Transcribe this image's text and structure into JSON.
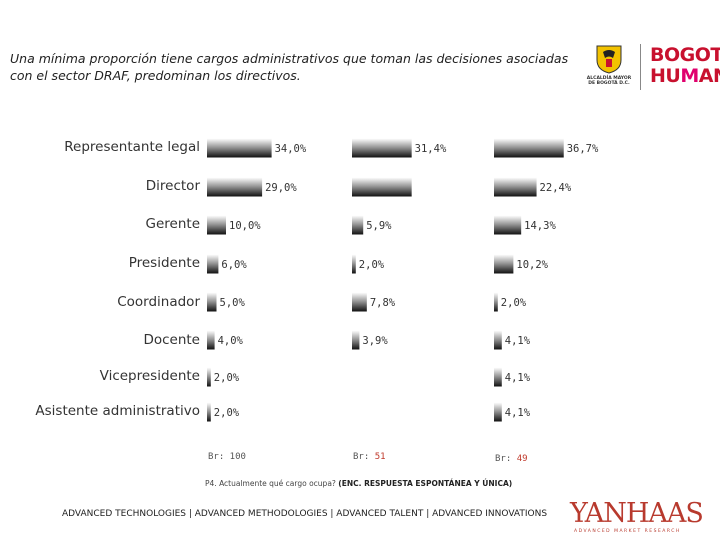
{
  "header": {
    "line1": "Una mínima proporción tiene cargos administrativos que toman las decisiones asociadas",
    "line2": "con el sector DRAF, predominan los directivos."
  },
  "logos": {
    "alcaldia_caption": "ALCALDÍA MAYOR DE BOGOTÁ D.C.",
    "bogota_line1": "BOGOTÁ",
    "bogota_line2_a": "HU",
    "bogota_line2_b": "M",
    "bogota_line2_c": "ANA",
    "yanhaas_brand": "YANHAAS",
    "yanhaas_sub": "ADVANCED MARKET RESEARCH"
  },
  "chart_data": {
    "type": "bar",
    "orientation": "horizontal",
    "categories": [
      "Representante legal",
      "Director",
      "Gerente",
      "Presidente",
      "Coordinador",
      "Docente",
      "Vicepresidente",
      "Asistente administrativo"
    ],
    "series": [
      {
        "values": [
          34.0,
          29.0,
          10.0,
          6.0,
          5.0,
          4.0,
          2.0,
          2.0
        ],
        "labels": [
          "34,0%",
          "29,0%",
          "10,0%",
          "6,0%",
          "5,0%",
          "4,0%",
          "2,0%",
          "2,0%"
        ],
        "base_label": "Br: 100",
        "base_prefix": "Br: 100",
        "base_n": ""
      },
      {
        "values": [
          31.4,
          31.4,
          5.9,
          2.0,
          7.8,
          3.9,
          null,
          null
        ],
        "labels": [
          "31,4%",
          "",
          "5,9%",
          "2,0%",
          "7,8%",
          "3,9%",
          "",
          ""
        ],
        "base_prefix": "Br: ",
        "base_n": "51"
      },
      {
        "values": [
          36.7,
          22.4,
          14.3,
          10.2,
          2.0,
          4.1,
          4.1,
          4.1
        ],
        "labels": [
          "36,7%",
          "22,4%",
          "14,3%",
          "10,2%",
          "2,0%",
          "4,1%",
          "4,1%",
          "4,1%"
        ],
        "base_prefix": "Br: ",
        "base_n": "49"
      }
    ]
  },
  "question": {
    "text": "P4. Actualmente qué cargo ocupa? ",
    "bold": "(ENC. RESPUESTA ESPONTÁNEA Y ÚNICA)"
  },
  "footer": {
    "text": "ADVANCED TECHNOLOGIES | ADVANCED METHODOLOGIES | ADVANCED TALENT | ADVANCED INNOVATIONS"
  }
}
